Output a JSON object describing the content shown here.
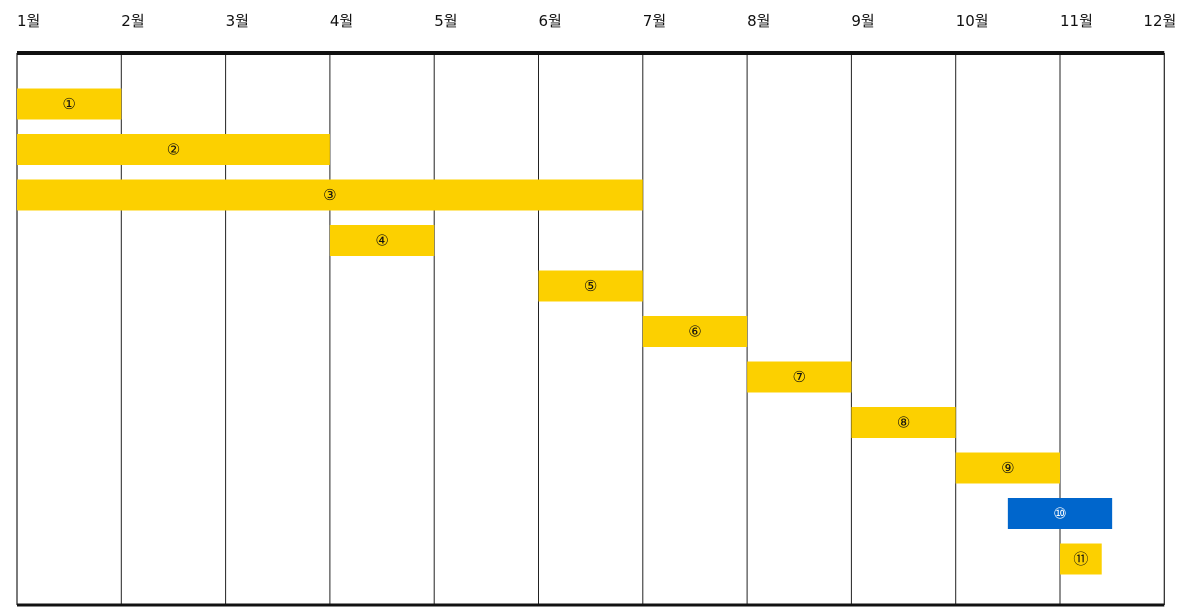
{
  "months": [
    "1월",
    "2월",
    "3월",
    "4월",
    "5월",
    "6월",
    "7월",
    "8월",
    "9월",
    "10월",
    "11월",
    "12월"
  ],
  "tasks": [
    {
      "label": "①",
      "start": 1,
      "end": 2,
      "color": "#FCD000",
      "text_color": "#111111"
    },
    {
      "label": "②",
      "start": 1,
      "end": 4,
      "color": "#FCD000",
      "text_color": "#111111"
    },
    {
      "label": "③",
      "start": 1,
      "end": 7,
      "color": "#FCD000",
      "text_color": "#111111"
    },
    {
      "label": "④",
      "start": 4,
      "end": 5,
      "color": "#FCD000",
      "text_color": "#111111"
    },
    {
      "label": "⑤",
      "start": 6,
      "end": 7,
      "color": "#FCD000",
      "text_color": "#111111"
    },
    {
      "label": "⑥",
      "start": 7,
      "end": 8,
      "color": "#FCD000",
      "text_color": "#111111"
    },
    {
      "label": "⑦",
      "start": 8,
      "end": 9,
      "color": "#FCD000",
      "text_color": "#111111"
    },
    {
      "label": "⑧",
      "start": 9,
      "end": 10,
      "color": "#FCD000",
      "text_color": "#111111"
    },
    {
      "label": "⑨",
      "start": 10,
      "end": 11,
      "color": "#FCD000",
      "text_color": "#111111"
    },
    {
      "label": "⑩",
      "start": 10.5,
      "end": 11.5,
      "color": "#0066CC",
      "text_color": "#ffffff"
    },
    {
      "label": "⑪",
      "start": 11,
      "end": 11.4,
      "color": "#FCD000",
      "text_color": "#111111"
    }
  ]
}
